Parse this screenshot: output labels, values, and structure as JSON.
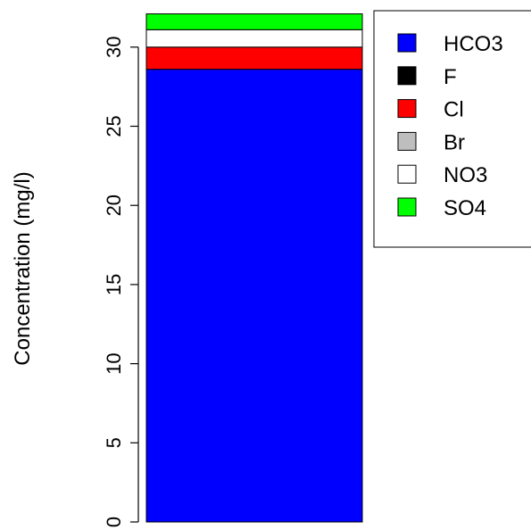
{
  "chart_data": {
    "type": "bar",
    "stacked": true,
    "title": "",
    "xlabel": "",
    "ylabel": "Concentration (mg/l)",
    "ylim": [
      0,
      32.3
    ],
    "yticks": [
      0,
      5,
      10,
      15,
      20,
      25,
      30
    ],
    "grid": false,
    "legend_position": "top-right",
    "categories": [
      ""
    ],
    "series": [
      {
        "name": "HCO3",
        "color": "#0000ff",
        "values": [
          28.6
        ]
      },
      {
        "name": "F",
        "color": "#000000",
        "values": [
          0.0
        ]
      },
      {
        "name": "Cl",
        "color": "#ff0000",
        "values": [
          1.4
        ]
      },
      {
        "name": "Br",
        "color": "#bebebe",
        "values": [
          0.0
        ]
      },
      {
        "name": "NO3",
        "color": "#ffffff",
        "values": [
          1.1
        ]
      },
      {
        "name": "SO4",
        "color": "#00ff00",
        "values": [
          1.0
        ]
      }
    ]
  }
}
